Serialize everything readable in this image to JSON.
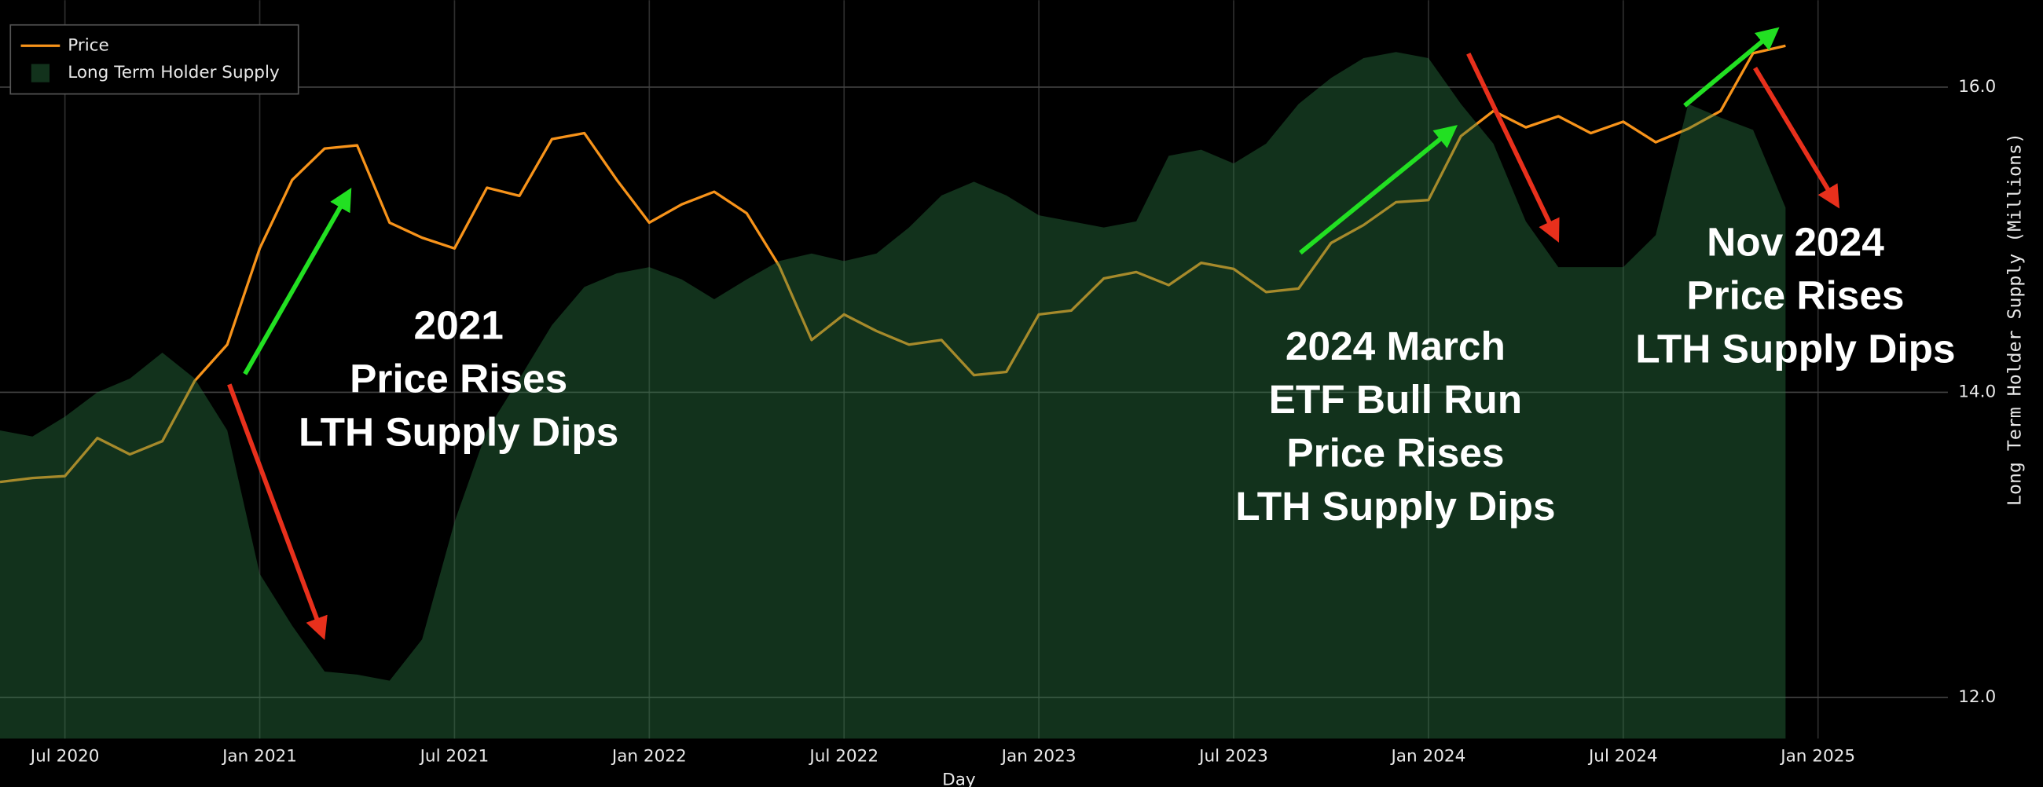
{
  "chart_data": {
    "type": "line",
    "x": [
      "2020-05",
      "2020-06",
      "2020-07",
      "2020-08",
      "2020-09",
      "2020-10",
      "2020-11",
      "2020-12",
      "2021-01",
      "2021-02",
      "2021-03",
      "2021-04",
      "2021-05",
      "2021-06",
      "2021-07",
      "2021-08",
      "2021-09",
      "2021-10",
      "2021-11",
      "2021-12",
      "2022-01",
      "2022-02",
      "2022-03",
      "2022-04",
      "2022-05",
      "2022-06",
      "2022-07",
      "2022-08",
      "2022-09",
      "2022-10",
      "2022-11",
      "2022-12",
      "2023-01",
      "2023-02",
      "2023-03",
      "2023-04",
      "2023-05",
      "2023-06",
      "2023-07",
      "2023-08",
      "2023-09",
      "2023-10",
      "2023-11",
      "2023-12",
      "2024-01",
      "2024-02",
      "2024-03",
      "2024-04",
      "2024-05",
      "2024-06",
      "2024-07",
      "2024-08",
      "2024-09",
      "2024-10",
      "2024-11",
      "2024-12"
    ],
    "series": [
      {
        "name": "Price",
        "color": "#f7931a",
        "axis": "y2",
        "values": [
          9200,
          9400,
          9500,
          11700,
          10700,
          11500,
          16000,
          19500,
          33000,
          48000,
          57000,
          58000,
          38000,
          35000,
          33000,
          46000,
          44000,
          60000,
          62000,
          48000,
          38000,
          42000,
          45000,
          40000,
          30000,
          20000,
          23000,
          21000,
          19500,
          20000,
          16500,
          16800,
          23000,
          23500,
          28000,
          29000,
          27000,
          30500,
          29500,
          26000,
          26500,
          34000,
          37500,
          42500,
          43000,
          61000,
          70000,
          64000,
          68000,
          62000,
          66000,
          59000,
          63500,
          70000,
          96000,
          100000
        ]
      },
      {
        "name": "Long Term Holder Supply",
        "color": "#2d7d46",
        "kind": "area",
        "values": [
          13.75,
          13.71,
          13.84,
          14.0,
          14.09,
          14.26,
          14.09,
          13.75,
          12.81,
          12.47,
          12.17,
          12.15,
          12.11,
          12.38,
          13.15,
          13.75,
          14.09,
          14.44,
          14.69,
          14.78,
          14.82,
          14.74,
          14.61,
          14.74,
          14.86,
          14.91,
          14.86,
          14.91,
          15.08,
          15.29,
          15.38,
          15.29,
          15.16,
          15.12,
          15.08,
          15.12,
          15.55,
          15.59,
          15.5,
          15.63,
          15.89,
          16.06,
          16.19,
          16.23,
          16.19,
          15.89,
          15.63,
          15.12,
          14.82,
          14.82,
          14.82,
          15.03,
          15.89,
          15.8,
          15.72,
          15.21
        ]
      }
    ],
    "xlim": [
      "2020-05",
      "2025-05"
    ],
    "xticks": [
      {
        "value": "2020-07",
        "label": "Jul 2020"
      },
      {
        "value": "2021-01",
        "label": "Jan 2021"
      },
      {
        "value": "2021-07",
        "label": "Jul 2021"
      },
      {
        "value": "2022-01",
        "label": "Jan 2022"
      },
      {
        "value": "2022-07",
        "label": "Jul 2022"
      },
      {
        "value": "2023-01",
        "label": "Jan 2023"
      },
      {
        "value": "2023-07",
        "label": "Jul 2023"
      },
      {
        "value": "2024-01",
        "label": "Jan 2024"
      },
      {
        "value": "2024-07",
        "label": "Jul 2024"
      },
      {
        "value": "2025-01",
        "label": "Jan 2025"
      }
    ],
    "ylim": [
      11.73,
      16.57
    ],
    "yticks": [
      {
        "value": 12,
        "label": "12.0"
      },
      {
        "value": 14,
        "label": "14.0"
      },
      {
        "value": 16,
        "label": "16.0"
      }
    ],
    "y2lim": [
      2260,
      128300
    ],
    "y2log": true,
    "grid": true,
    "legend": "top-left",
    "xlabel": "Day",
    "ylabel": "Long Term Holder Supply (Millions)",
    "annotations": [
      {
        "lines": [
          "2021",
          "Price Rises",
          "LTH Supply Dips"
        ]
      },
      {
        "lines": [
          "2024 March",
          "ETF Bull Run",
          "Price Rises",
          "LTH Supply Dips"
        ]
      },
      {
        "lines": [
          "Nov 2024",
          "Price Rises",
          "LTH Supply Dips"
        ]
      }
    ]
  }
}
